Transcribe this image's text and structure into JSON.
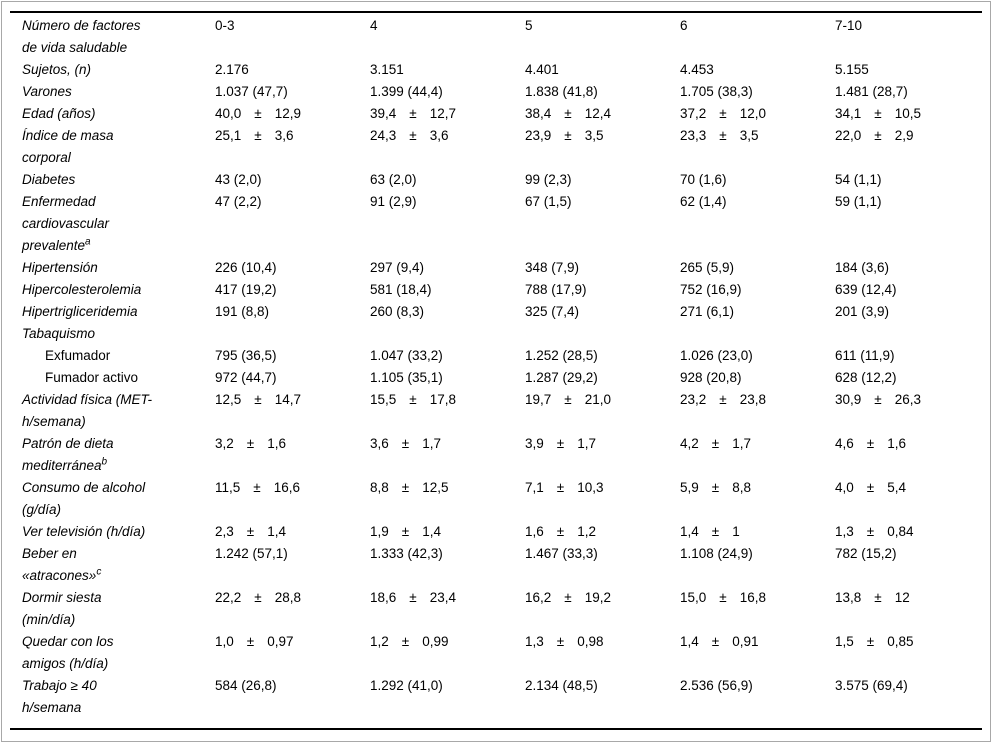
{
  "table": {
    "pm_symbol": "±",
    "columns_note": "first column = row label, then factor-count groups",
    "rows": [
      {
        "label_lines": [
          "Número de factores",
          "de vida saludable"
        ],
        "cells": [
          {
            "text": "0-3"
          },
          {
            "text": "4"
          },
          {
            "text": "5"
          },
          {
            "text": "6"
          },
          {
            "text": "7-10"
          }
        ]
      },
      {
        "label_lines": [
          "Sujetos, (n)"
        ],
        "cells": [
          {
            "text": "2.176"
          },
          {
            "text": "3.151"
          },
          {
            "text": "4.401"
          },
          {
            "text": "4.453"
          },
          {
            "text": "5.155"
          }
        ]
      },
      {
        "label_lines": [
          "Varones"
        ],
        "cells": [
          {
            "text": "1.037 (47,7)"
          },
          {
            "text": "1.399 (44,4)"
          },
          {
            "text": "1.838 (41,8)"
          },
          {
            "text": "1.705 (38,3)"
          },
          {
            "text": "1.481 (28,7)"
          }
        ]
      },
      {
        "label_lines": [
          "Edad (años)"
        ],
        "cells": [
          {
            "mean": "40,0",
            "sd": "12,9"
          },
          {
            "mean": "39,4",
            "sd": "12,7"
          },
          {
            "mean": "38,4",
            "sd": "12,4"
          },
          {
            "mean": "37,2",
            "sd": "12,0"
          },
          {
            "mean": "34,1",
            "sd": "10,5"
          }
        ]
      },
      {
        "label_lines": [
          "Índice de masa",
          "corporal"
        ],
        "cells": [
          {
            "mean": "25,1",
            "sd": "3,6"
          },
          {
            "mean": "24,3",
            "sd": "3,6"
          },
          {
            "mean": "23,9",
            "sd": "3,5"
          },
          {
            "mean": "23,3",
            "sd": "3,5"
          },
          {
            "mean": "22,0",
            "sd": "2,9"
          }
        ]
      },
      {
        "label_lines": [
          "Diabetes"
        ],
        "cells": [
          {
            "text": "43 (2,0)"
          },
          {
            "text": "63 (2,0)"
          },
          {
            "text": "99 (2,3)"
          },
          {
            "text": "70 (1,6)"
          },
          {
            "text": "54 (1,1)"
          }
        ]
      },
      {
        "label_lines": [
          "Enfermedad",
          "cardiovascular",
          "prevalente"
        ],
        "sup": "a",
        "cells": [
          {
            "text": "47 (2,2)"
          },
          {
            "text": "91 (2,9)"
          },
          {
            "text": "67 (1,5)"
          },
          {
            "text": "62 (1,4)"
          },
          {
            "text": "59 (1,1)"
          }
        ]
      },
      {
        "label_lines": [
          "Hipertensión"
        ],
        "cells": [
          {
            "text": "226 (10,4)"
          },
          {
            "text": "297 (9,4)"
          },
          {
            "text": "348 (7,9)"
          },
          {
            "text": "265 (5,9)"
          },
          {
            "text": "184 (3,6)"
          }
        ]
      },
      {
        "label_lines": [
          "Hipercolesterolemia"
        ],
        "cells": [
          {
            "text": "417 (19,2)"
          },
          {
            "text": "581 (18,4)"
          },
          {
            "text": "788 (17,9)"
          },
          {
            "text": "752 (16,9)"
          },
          {
            "text": "639 (12,4)"
          }
        ]
      },
      {
        "label_lines": [
          "Hipertrigliceridemia"
        ],
        "cells": [
          {
            "text": "191 (8,8)"
          },
          {
            "text": "260 (8,3)"
          },
          {
            "text": "325 (7,4)"
          },
          {
            "text": "271 (6,1)"
          },
          {
            "text": "201 (3,9)"
          }
        ]
      },
      {
        "label_lines": [
          "Tabaquismo"
        ],
        "cells": []
      },
      {
        "label_lines": [
          "Exfumador"
        ],
        "indent": true,
        "upright": true,
        "cells": [
          {
            "text": "795 (36,5)"
          },
          {
            "text": "1.047 (33,2)"
          },
          {
            "text": "1.252 (28,5)"
          },
          {
            "text": "1.026 (23,0)"
          },
          {
            "text": "611 (11,9)"
          }
        ]
      },
      {
        "label_lines": [
          "Fumador activo"
        ],
        "indent": true,
        "upright": true,
        "cells": [
          {
            "text": "972 (44,7)"
          },
          {
            "text": "1.105 (35,1)"
          },
          {
            "text": "1.287 (29,2)"
          },
          {
            "text": "928 (20,8)"
          },
          {
            "text": "628 (12,2)"
          }
        ]
      },
      {
        "label_lines": [
          "Actividad física (MET-",
          "h/semana)"
        ],
        "cells": [
          {
            "mean": "12,5",
            "sd": "14,7"
          },
          {
            "mean": "15,5",
            "sd": "17,8"
          },
          {
            "mean": "19,7",
            "sd": "21,0"
          },
          {
            "mean": "23,2",
            "sd": "23,8"
          },
          {
            "mean": "30,9",
            "sd": "26,3"
          }
        ]
      },
      {
        "label_lines": [
          "Patrón de dieta",
          "mediterránea"
        ],
        "sup": "b",
        "cells": [
          {
            "mean": "3,2",
            "sd": "1,6"
          },
          {
            "mean": "3,6",
            "sd": "1,7"
          },
          {
            "mean": "3,9",
            "sd": "1,7"
          },
          {
            "mean": "4,2",
            "sd": "1,7"
          },
          {
            "mean": "4,6",
            "sd": "1,6"
          }
        ]
      },
      {
        "label_lines": [
          "Consumo de alcohol",
          "(g/día)"
        ],
        "cells": [
          {
            "mean": "11,5",
            "sd": "16,6"
          },
          {
            "mean": "8,8",
            "sd": "12,5"
          },
          {
            "mean": "7,1",
            "sd": "10,3"
          },
          {
            "mean": "5,9",
            "sd": "8,8"
          },
          {
            "mean": "4,0",
            "sd": "5,4"
          }
        ]
      },
      {
        "label_lines": [
          "Ver televisión (h/día)"
        ],
        "cells": [
          {
            "mean": "2,3",
            "sd": "1,4"
          },
          {
            "mean": "1,9",
            "sd": "1,4"
          },
          {
            "mean": "1,6",
            "sd": "1,2"
          },
          {
            "mean": "1,4",
            "sd": "1"
          },
          {
            "mean": "1,3",
            "sd": "0,84"
          }
        ]
      },
      {
        "label_lines": [
          "Beber en",
          "«atracones»"
        ],
        "sup": "c",
        "cells": [
          {
            "text": "1.242 (57,1)"
          },
          {
            "text": "1.333 (42,3)"
          },
          {
            "text": "1.467 (33,3)"
          },
          {
            "text": "1.108 (24,9)"
          },
          {
            "text": "782 (15,2)"
          }
        ]
      },
      {
        "label_lines": [
          "Dormir siesta",
          "(min/día)"
        ],
        "cells": [
          {
            "mean": "22,2",
            "sd": "28,8"
          },
          {
            "mean": "18,6",
            "sd": "23,4"
          },
          {
            "mean": "16,2",
            "sd": "19,2"
          },
          {
            "mean": "15,0",
            "sd": "16,8"
          },
          {
            "mean": "13,8",
            "sd": "12"
          }
        ]
      },
      {
        "label_lines": [
          "Quedar con los",
          "amigos (h/día)"
        ],
        "cells": [
          {
            "mean": "1,0",
            "sd": "0,97"
          },
          {
            "mean": "1,2",
            "sd": "0,99"
          },
          {
            "mean": "1,3",
            "sd": "0,98"
          },
          {
            "mean": "1,4",
            "sd": "0,91"
          },
          {
            "mean": "1,5",
            "sd": "0,85"
          }
        ]
      },
      {
        "label_lines": [
          "Trabajo ≥ 40",
          "h/semana"
        ],
        "cells": [
          {
            "text": "584 (26,8)"
          },
          {
            "text": "1.292 (41,0)"
          },
          {
            "text": "2.134 (48,5)"
          },
          {
            "text": "2.536 (56,9)"
          },
          {
            "text": "3.575 (69,4)"
          }
        ]
      }
    ]
  }
}
